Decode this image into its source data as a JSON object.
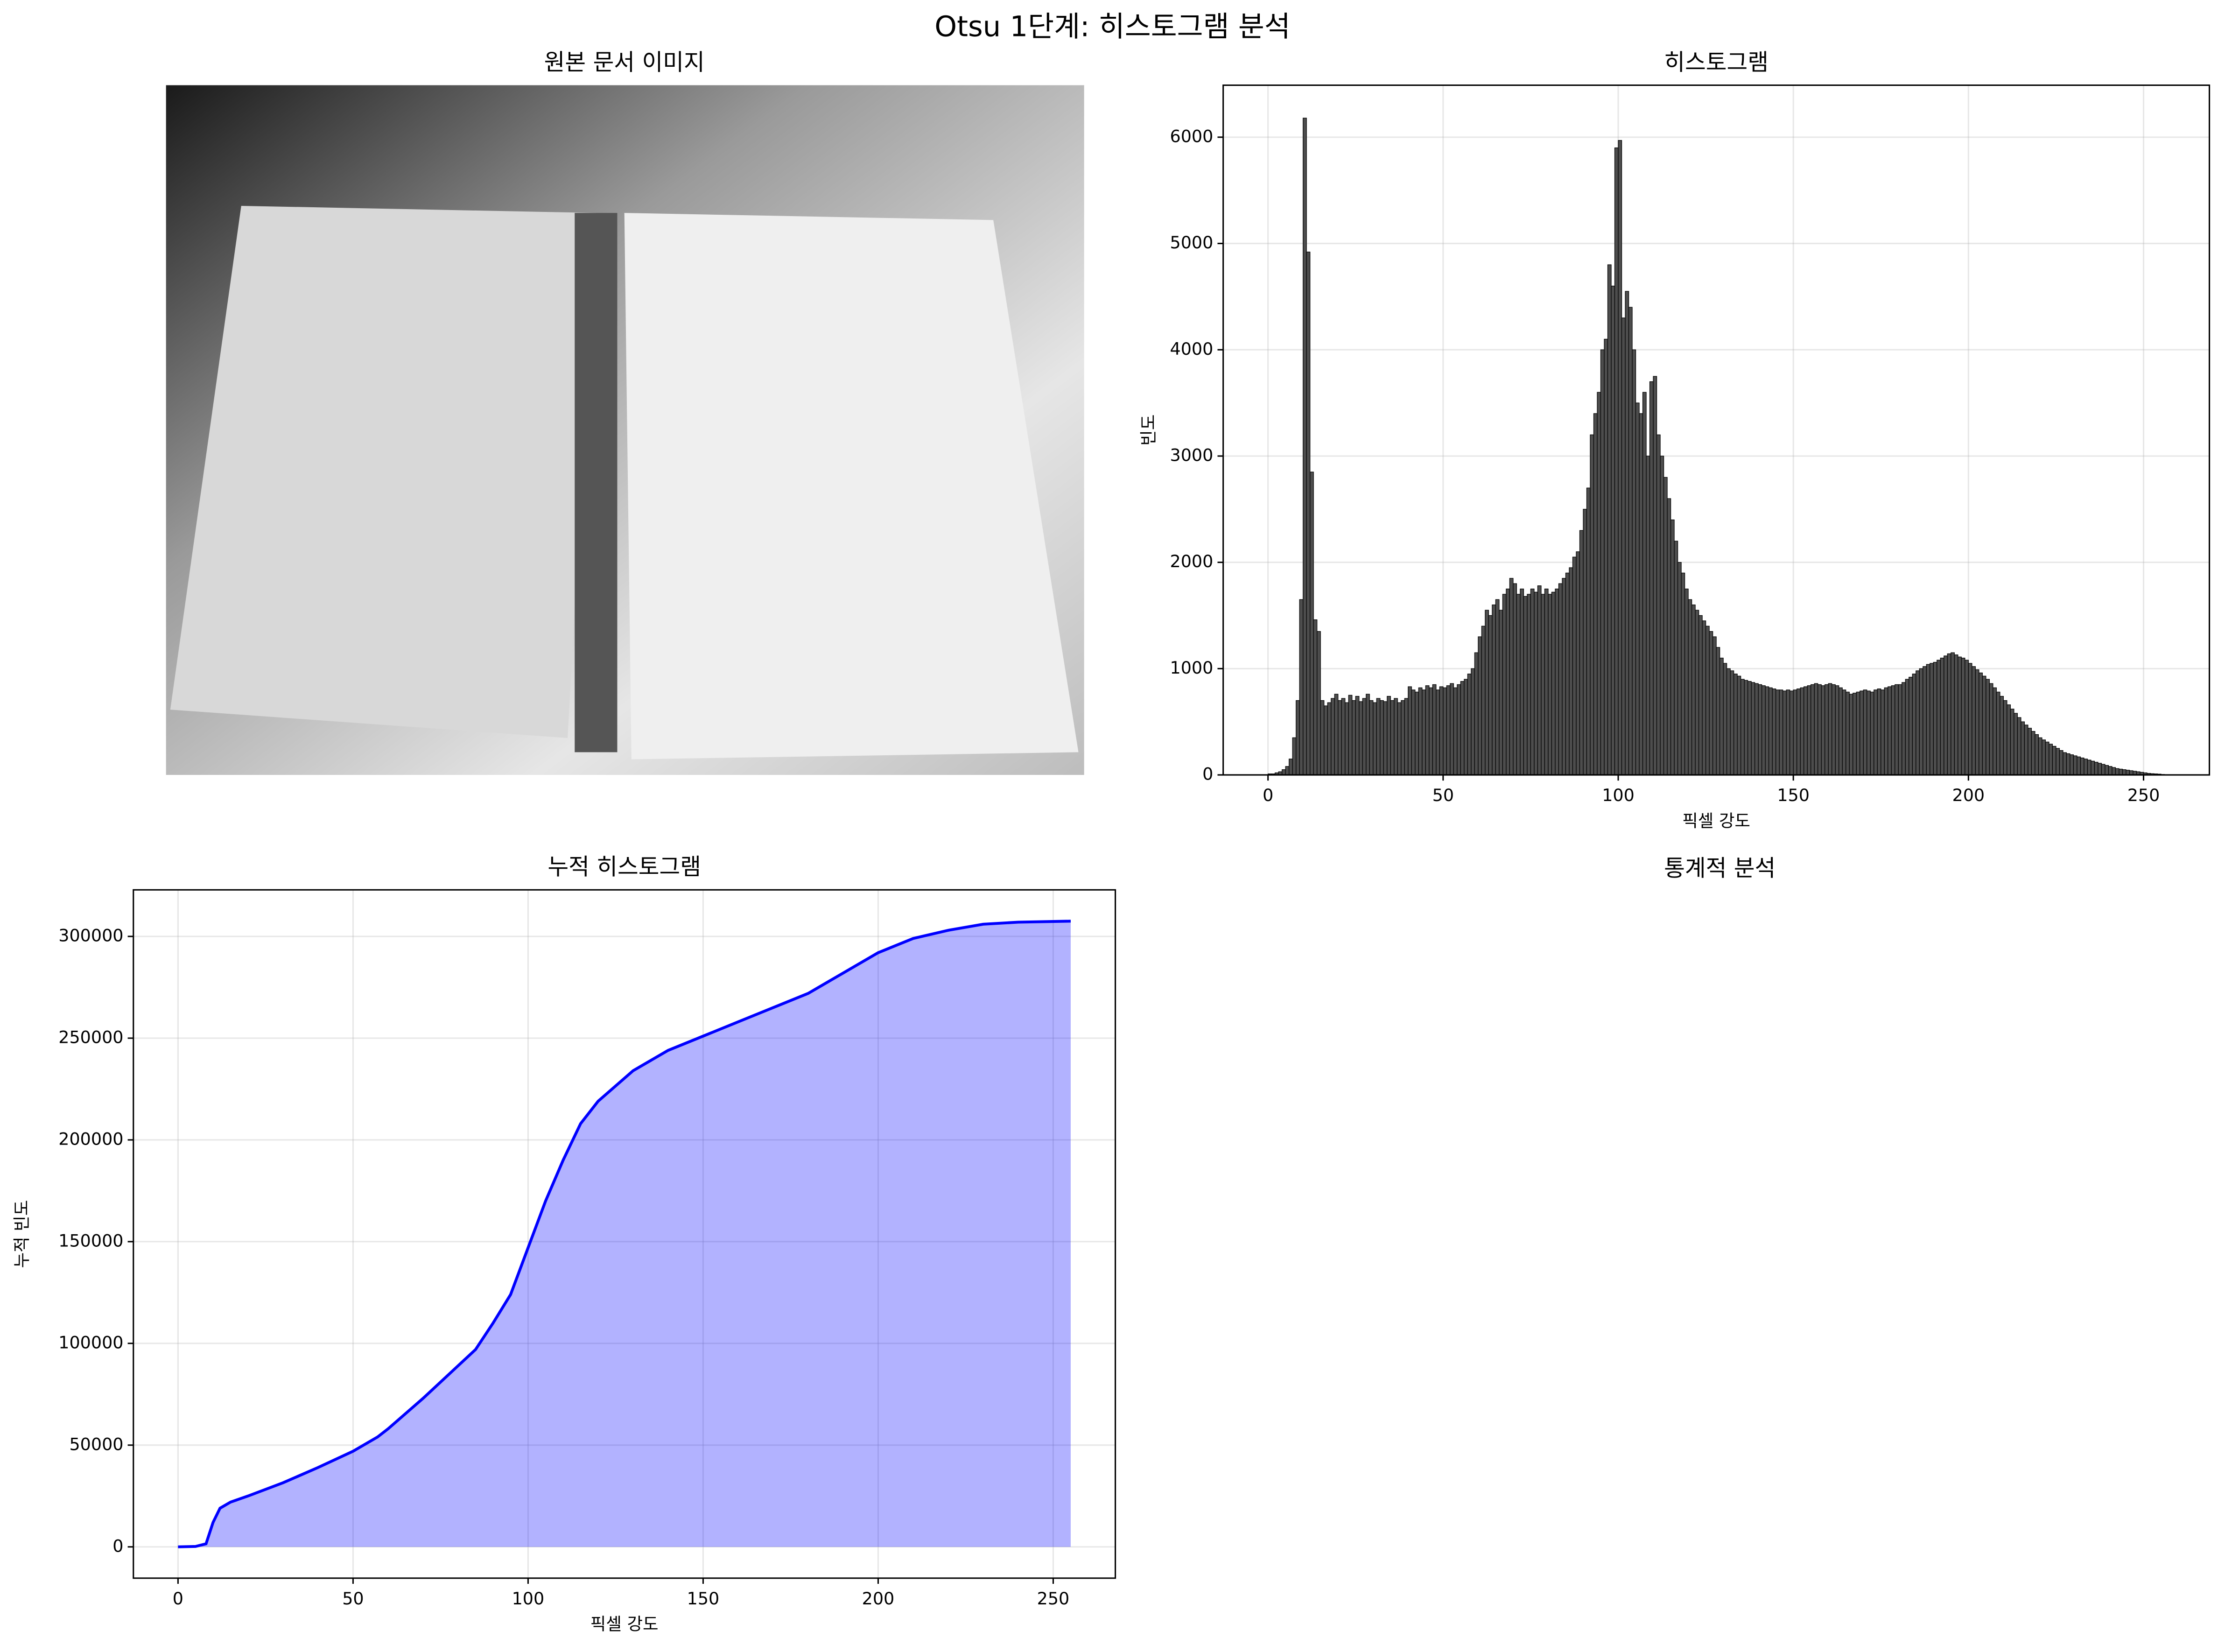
{
  "title": "Otsu 1단계: 히스토그램 분석",
  "image_panel": {
    "title": "원본 문서 이미지"
  },
  "stats_panel": {
    "title": "통계적 분석"
  },
  "chart_data": [
    {
      "type": "histogram",
      "title": "히스토그램",
      "x_label": "픽셀 강도",
      "y_label": "빈도",
      "color": "#4d4d4d",
      "edge_color": "#000000",
      "grid": true,
      "xlim": [
        -12.8,
        268.8
      ],
      "ylim": [
        0,
        6489
      ],
      "xticks": [
        0,
        50,
        100,
        150,
        200,
        250
      ],
      "yticks": [
        0,
        1000,
        2000,
        3000,
        4000,
        5000,
        6000
      ],
      "bins": [
        0,
        1,
        2,
        3,
        4,
        5,
        6,
        7,
        8,
        9,
        10,
        11,
        12,
        13,
        14,
        15,
        16,
        17,
        18,
        19,
        20,
        21,
        22,
        23,
        24,
        25,
        26,
        27,
        28,
        29,
        30,
        31,
        32,
        33,
        34,
        35,
        36,
        37,
        38,
        39,
        40,
        41,
        42,
        43,
        44,
        45,
        46,
        47,
        48,
        49,
        50,
        51,
        52,
        53,
        54,
        55,
        56,
        57,
        58,
        59,
        60,
        61,
        62,
        63,
        64,
        65,
        66,
        67,
        68,
        69,
        70,
        71,
        72,
        73,
        74,
        75,
        76,
        77,
        78,
        79,
        80,
        81,
        82,
        83,
        84,
        85,
        86,
        87,
        88,
        89,
        90,
        91,
        92,
        93,
        94,
        95,
        96,
        97,
        98,
        99,
        100,
        101,
        102,
        103,
        104,
        105,
        106,
        107,
        108,
        109,
        110,
        111,
        112,
        113,
        114,
        115,
        116,
        117,
        118,
        119,
        120,
        121,
        122,
        123,
        124,
        125,
        126,
        127,
        128,
        129,
        130,
        131,
        132,
        133,
        134,
        135,
        136,
        137,
        138,
        139,
        140,
        141,
        142,
        143,
        144,
        145,
        146,
        147,
        148,
        149,
        150,
        151,
        152,
        153,
        154,
        155,
        156,
        157,
        158,
        159,
        160,
        161,
        162,
        163,
        164,
        165,
        166,
        167,
        168,
        169,
        170,
        171,
        172,
        173,
        174,
        175,
        176,
        177,
        178,
        179,
        180,
        181,
        182,
        183,
        184,
        185,
        186,
        187,
        188,
        189,
        190,
        191,
        192,
        193,
        194,
        195,
        196,
        197,
        198,
        199,
        200,
        201,
        202,
        203,
        204,
        205,
        206,
        207,
        208,
        209,
        210,
        211,
        212,
        213,
        214,
        215,
        216,
        217,
        218,
        219,
        220,
        221,
        222,
        223,
        224,
        225,
        226,
        227,
        228,
        229,
        230,
        231,
        232,
        233,
        234,
        235,
        236,
        237,
        238,
        239,
        240,
        241,
        242,
        243,
        244,
        245,
        246,
        247,
        248,
        249,
        250,
        251,
        252,
        253,
        254,
        255,
        256
      ],
      "counts": [
        10,
        10,
        20,
        30,
        50,
        80,
        150,
        350,
        700,
        1650,
        6180,
        4920,
        2850,
        1460,
        1350,
        700,
        650,
        680,
        720,
        760,
        700,
        720,
        680,
        750,
        700,
        740,
        690,
        720,
        760,
        700,
        680,
        720,
        700,
        690,
        740,
        700,
        720,
        680,
        700,
        720,
        830,
        800,
        780,
        820,
        800,
        840,
        820,
        850,
        800,
        830,
        820,
        840,
        860,
        820,
        850,
        880,
        900,
        950,
        1000,
        1150,
        1300,
        1400,
        1550,
        1500,
        1600,
        1650,
        1550,
        1700,
        1750,
        1850,
        1800,
        1700,
        1750,
        1680,
        1700,
        1750,
        1720,
        1780,
        1700,
        1750,
        1700,
        1720,
        1750,
        1800,
        1850,
        1900,
        1950,
        2050,
        2100,
        2300,
        2500,
        2700,
        3200,
        3400,
        3600,
        4000,
        4100,
        4800,
        4600,
        5900,
        5970,
        4300,
        4550,
        4400,
        4000,
        3500,
        3400,
        3600,
        3000,
        3700,
        3750,
        3200,
        3000,
        2800,
        2600,
        2400,
        2200,
        2000,
        1900,
        1750,
        1650,
        1600,
        1550,
        1500,
        1450,
        1400,
        1350,
        1300,
        1200,
        1100,
        1050,
        1000,
        980,
        950,
        930,
        900,
        890,
        880,
        870,
        860,
        850,
        840,
        830,
        820,
        810,
        800,
        800,
        790,
        800,
        790,
        800,
        810,
        820,
        830,
        840,
        850,
        860,
        850,
        840,
        850,
        860,
        850,
        840,
        820,
        800,
        780,
        760,
        770,
        780,
        790,
        800,
        790,
        780,
        800,
        810,
        800,
        820,
        830,
        840,
        850,
        850,
        870,
        900,
        920,
        950,
        980,
        1000,
        1020,
        1040,
        1050,
        1060,
        1080,
        1100,
        1120,
        1140,
        1150,
        1130,
        1110,
        1100,
        1080,
        1050,
        1020,
        990,
        960,
        930,
        900,
        860,
        820,
        780,
        740,
        700,
        660,
        620,
        580,
        540,
        500,
        470,
        440,
        410,
        380,
        350,
        330,
        310,
        290,
        270,
        250,
        230,
        210,
        200,
        190,
        180,
        170,
        160,
        150,
        140,
        130,
        120,
        110,
        100,
        90,
        80,
        70,
        60,
        55,
        50,
        45,
        40,
        35,
        30,
        25,
        20,
        15,
        12,
        10,
        8,
        5
      ]
    },
    {
      "type": "area",
      "title": "누적 히스토그램",
      "x_label": "픽셀 강도",
      "y_label": "누적 빈도",
      "color": "#0000ff",
      "grid": true,
      "xlim": [
        -12.75,
        267.75
      ],
      "ylim": [
        -15375,
        322875
      ],
      "xticks": [
        0,
        50,
        100,
        150,
        200,
        250
      ],
      "yticks": [
        0,
        50000,
        100000,
        150000,
        200000,
        250000,
        300000
      ],
      "x": [
        0,
        5,
        8,
        10,
        12,
        15,
        20,
        30,
        40,
        50,
        57,
        60,
        70,
        80,
        85,
        90,
        95,
        100,
        105,
        110,
        115,
        120,
        130,
        140,
        150,
        160,
        170,
        180,
        190,
        200,
        210,
        220,
        230,
        240,
        255
      ],
      "values": [
        0,
        200,
        1500,
        12000,
        19000,
        22000,
        25000,
        31500,
        39000,
        47000,
        54000,
        58000,
        73000,
        89000,
        97000,
        110000,
        124000,
        147000,
        170000,
        190000,
        208000,
        219000,
        234000,
        244000,
        251000,
        258000,
        265000,
        272000,
        282000,
        292000,
        299000,
        303000,
        306000,
        307000,
        307500
      ]
    }
  ]
}
